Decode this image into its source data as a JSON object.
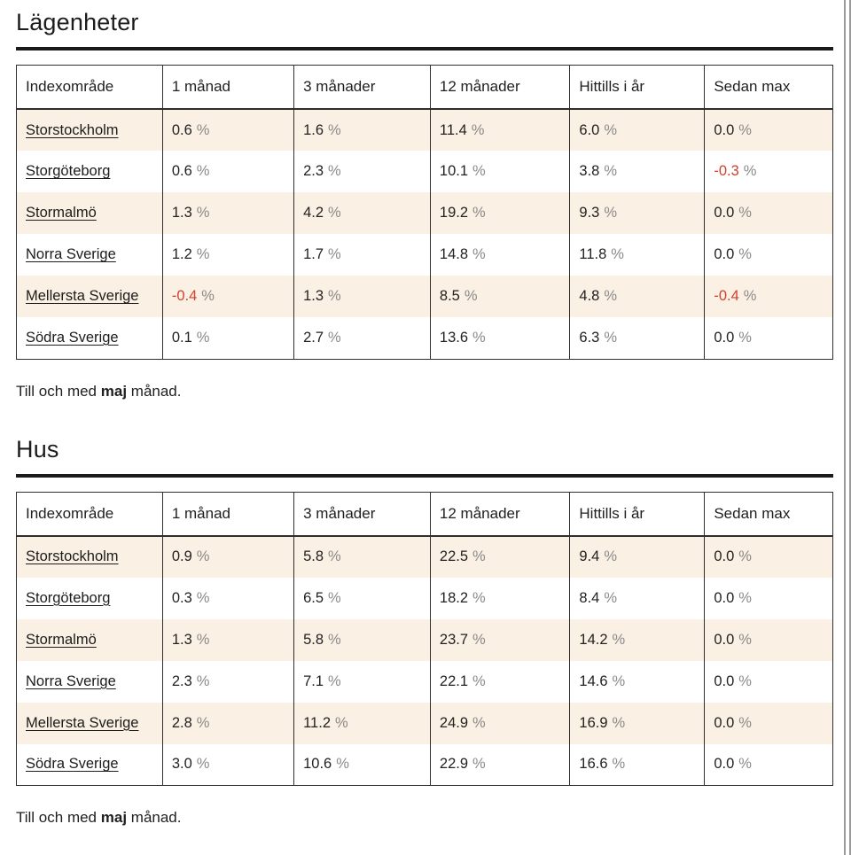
{
  "unit": "%",
  "colors": {
    "row_stripe_cream": "#faf0e3",
    "negative_red": "#d2402e",
    "text_dark": "#1f1f1f",
    "percent_gray": "#8a8a8a",
    "table_border": "#2e2e2e"
  },
  "sections": [
    {
      "title": "Lägenheter",
      "columns": [
        "Indexområde",
        "1 månad",
        "3 månader",
        "12 månader",
        "Hittills i år",
        "Sedan max"
      ],
      "rows": [
        {
          "area": "Storstockholm",
          "values": [
            "0.6",
            "1.6",
            "11.4",
            "6.0",
            "0.0"
          ]
        },
        {
          "area": "Storgöteborg",
          "values": [
            "0.6",
            "2.3",
            "10.1",
            "3.8",
            "-0.3"
          ]
        },
        {
          "area": "Stormalmö",
          "values": [
            "1.3",
            "4.2",
            "19.2",
            "9.3",
            "0.0"
          ]
        },
        {
          "area": "Norra Sverige",
          "values": [
            "1.2",
            "1.7",
            "14.8",
            "11.8",
            "0.0"
          ]
        },
        {
          "area": "Mellersta Sverige",
          "values": [
            "-0.4",
            "1.3",
            "8.5",
            "4.8",
            "-0.4"
          ]
        },
        {
          "area": "Södra Sverige",
          "values": [
            "0.1",
            "2.7",
            "13.6",
            "6.3",
            "0.0"
          ]
        }
      ],
      "footnote": {
        "pre": "Till och med",
        "bold": "maj",
        "post": "månad."
      }
    },
    {
      "title": "Hus",
      "columns": [
        "Indexområde",
        "1 månad",
        "3 månader",
        "12 månader",
        "Hittills i år",
        "Sedan max"
      ],
      "rows": [
        {
          "area": "Storstockholm",
          "values": [
            "0.9",
            "5.8",
            "22.5",
            "9.4",
            "0.0"
          ]
        },
        {
          "area": "Storgöteborg",
          "values": [
            "0.3",
            "6.5",
            "18.2",
            "8.4",
            "0.0"
          ]
        },
        {
          "area": "Stormalmö",
          "values": [
            "1.3",
            "5.8",
            "23.7",
            "14.2",
            "0.0"
          ]
        },
        {
          "area": "Norra Sverige",
          "values": [
            "2.3",
            "7.1",
            "22.1",
            "14.6",
            "0.0"
          ]
        },
        {
          "area": "Mellersta Sverige",
          "values": [
            "2.8",
            "11.2",
            "24.9",
            "16.9",
            "0.0"
          ]
        },
        {
          "area": "Södra Sverige",
          "values": [
            "3.0",
            "10.6",
            "22.9",
            "16.6",
            "0.0"
          ]
        }
      ],
      "footnote": {
        "pre": "Till och med",
        "bold": "maj",
        "post": "månad."
      }
    }
  ]
}
